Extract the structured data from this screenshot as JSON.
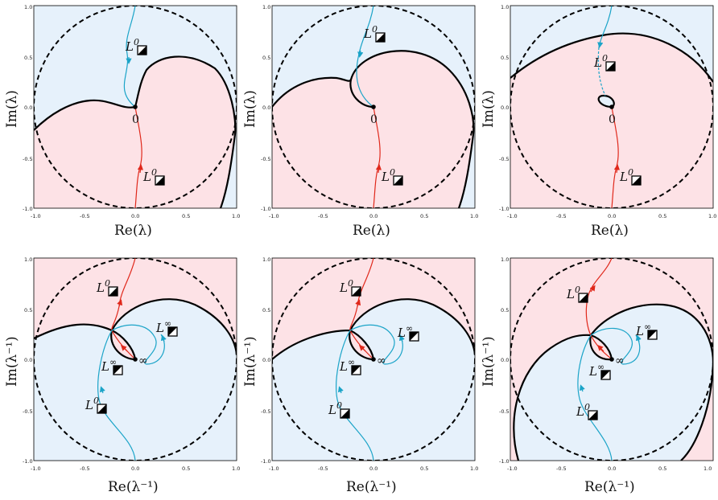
{
  "colors": {
    "pink": "#fde2e6",
    "blue": "#e6f1fb",
    "red_curve": "#e0281b",
    "cyan_curve": "#1ba4c8",
    "black": "#000000"
  },
  "ticks": {
    "x": [
      "-1.0",
      "-0.5",
      "0.0",
      "0.5",
      "1.0"
    ],
    "y": [
      "1.0",
      "0.5",
      "0.0",
      "-0.5",
      "-1.0"
    ]
  },
  "panels": [
    {
      "xlabel": "Re(λ)",
      "ylabel": "Im(λ)",
      "point": "0",
      "labels": [
        {
          "main": "L",
          "sup": "0"
        },
        {
          "main": "L",
          "sup": "0"
        }
      ]
    },
    {
      "xlabel": "Re(λ)",
      "ylabel": "Im(λ)",
      "point": "0",
      "labels": [
        {
          "main": "L",
          "sup": "0"
        },
        {
          "main": "L",
          "sup": "0"
        }
      ]
    },
    {
      "xlabel": "Re(λ)",
      "ylabel": "Im(λ)",
      "point": "0",
      "labels": [
        {
          "main": "L",
          "sup": "0"
        },
        {
          "main": "L",
          "sup": "0"
        }
      ]
    },
    {
      "xlabel": "Re(λ⁻¹)",
      "ylabel": "Im(λ⁻¹)",
      "point": "∞",
      "labels": [
        {
          "main": "L",
          "sup": "0"
        },
        {
          "main": "L",
          "sup": "∞"
        },
        {
          "main": "L",
          "sup": "∞"
        },
        {
          "main": "L",
          "sup": "0"
        }
      ]
    },
    {
      "xlabel": "Re(λ⁻¹)",
      "ylabel": "Im(λ⁻¹)",
      "point": "∞",
      "labels": [
        {
          "main": "L",
          "sup": "0"
        },
        {
          "main": "L",
          "sup": "∞"
        },
        {
          "main": "L",
          "sup": "∞"
        },
        {
          "main": "L",
          "sup": "0"
        }
      ]
    },
    {
      "xlabel": "Re(λ⁻¹)",
      "ylabel": "Im(λ⁻¹)",
      "point": "∞",
      "labels": [
        {
          "main": "L",
          "sup": "0"
        },
        {
          "main": "L",
          "sup": "∞"
        },
        {
          "main": "L",
          "sup": "∞"
        },
        {
          "main": "L",
          "sup": "0"
        }
      ]
    }
  ]
}
